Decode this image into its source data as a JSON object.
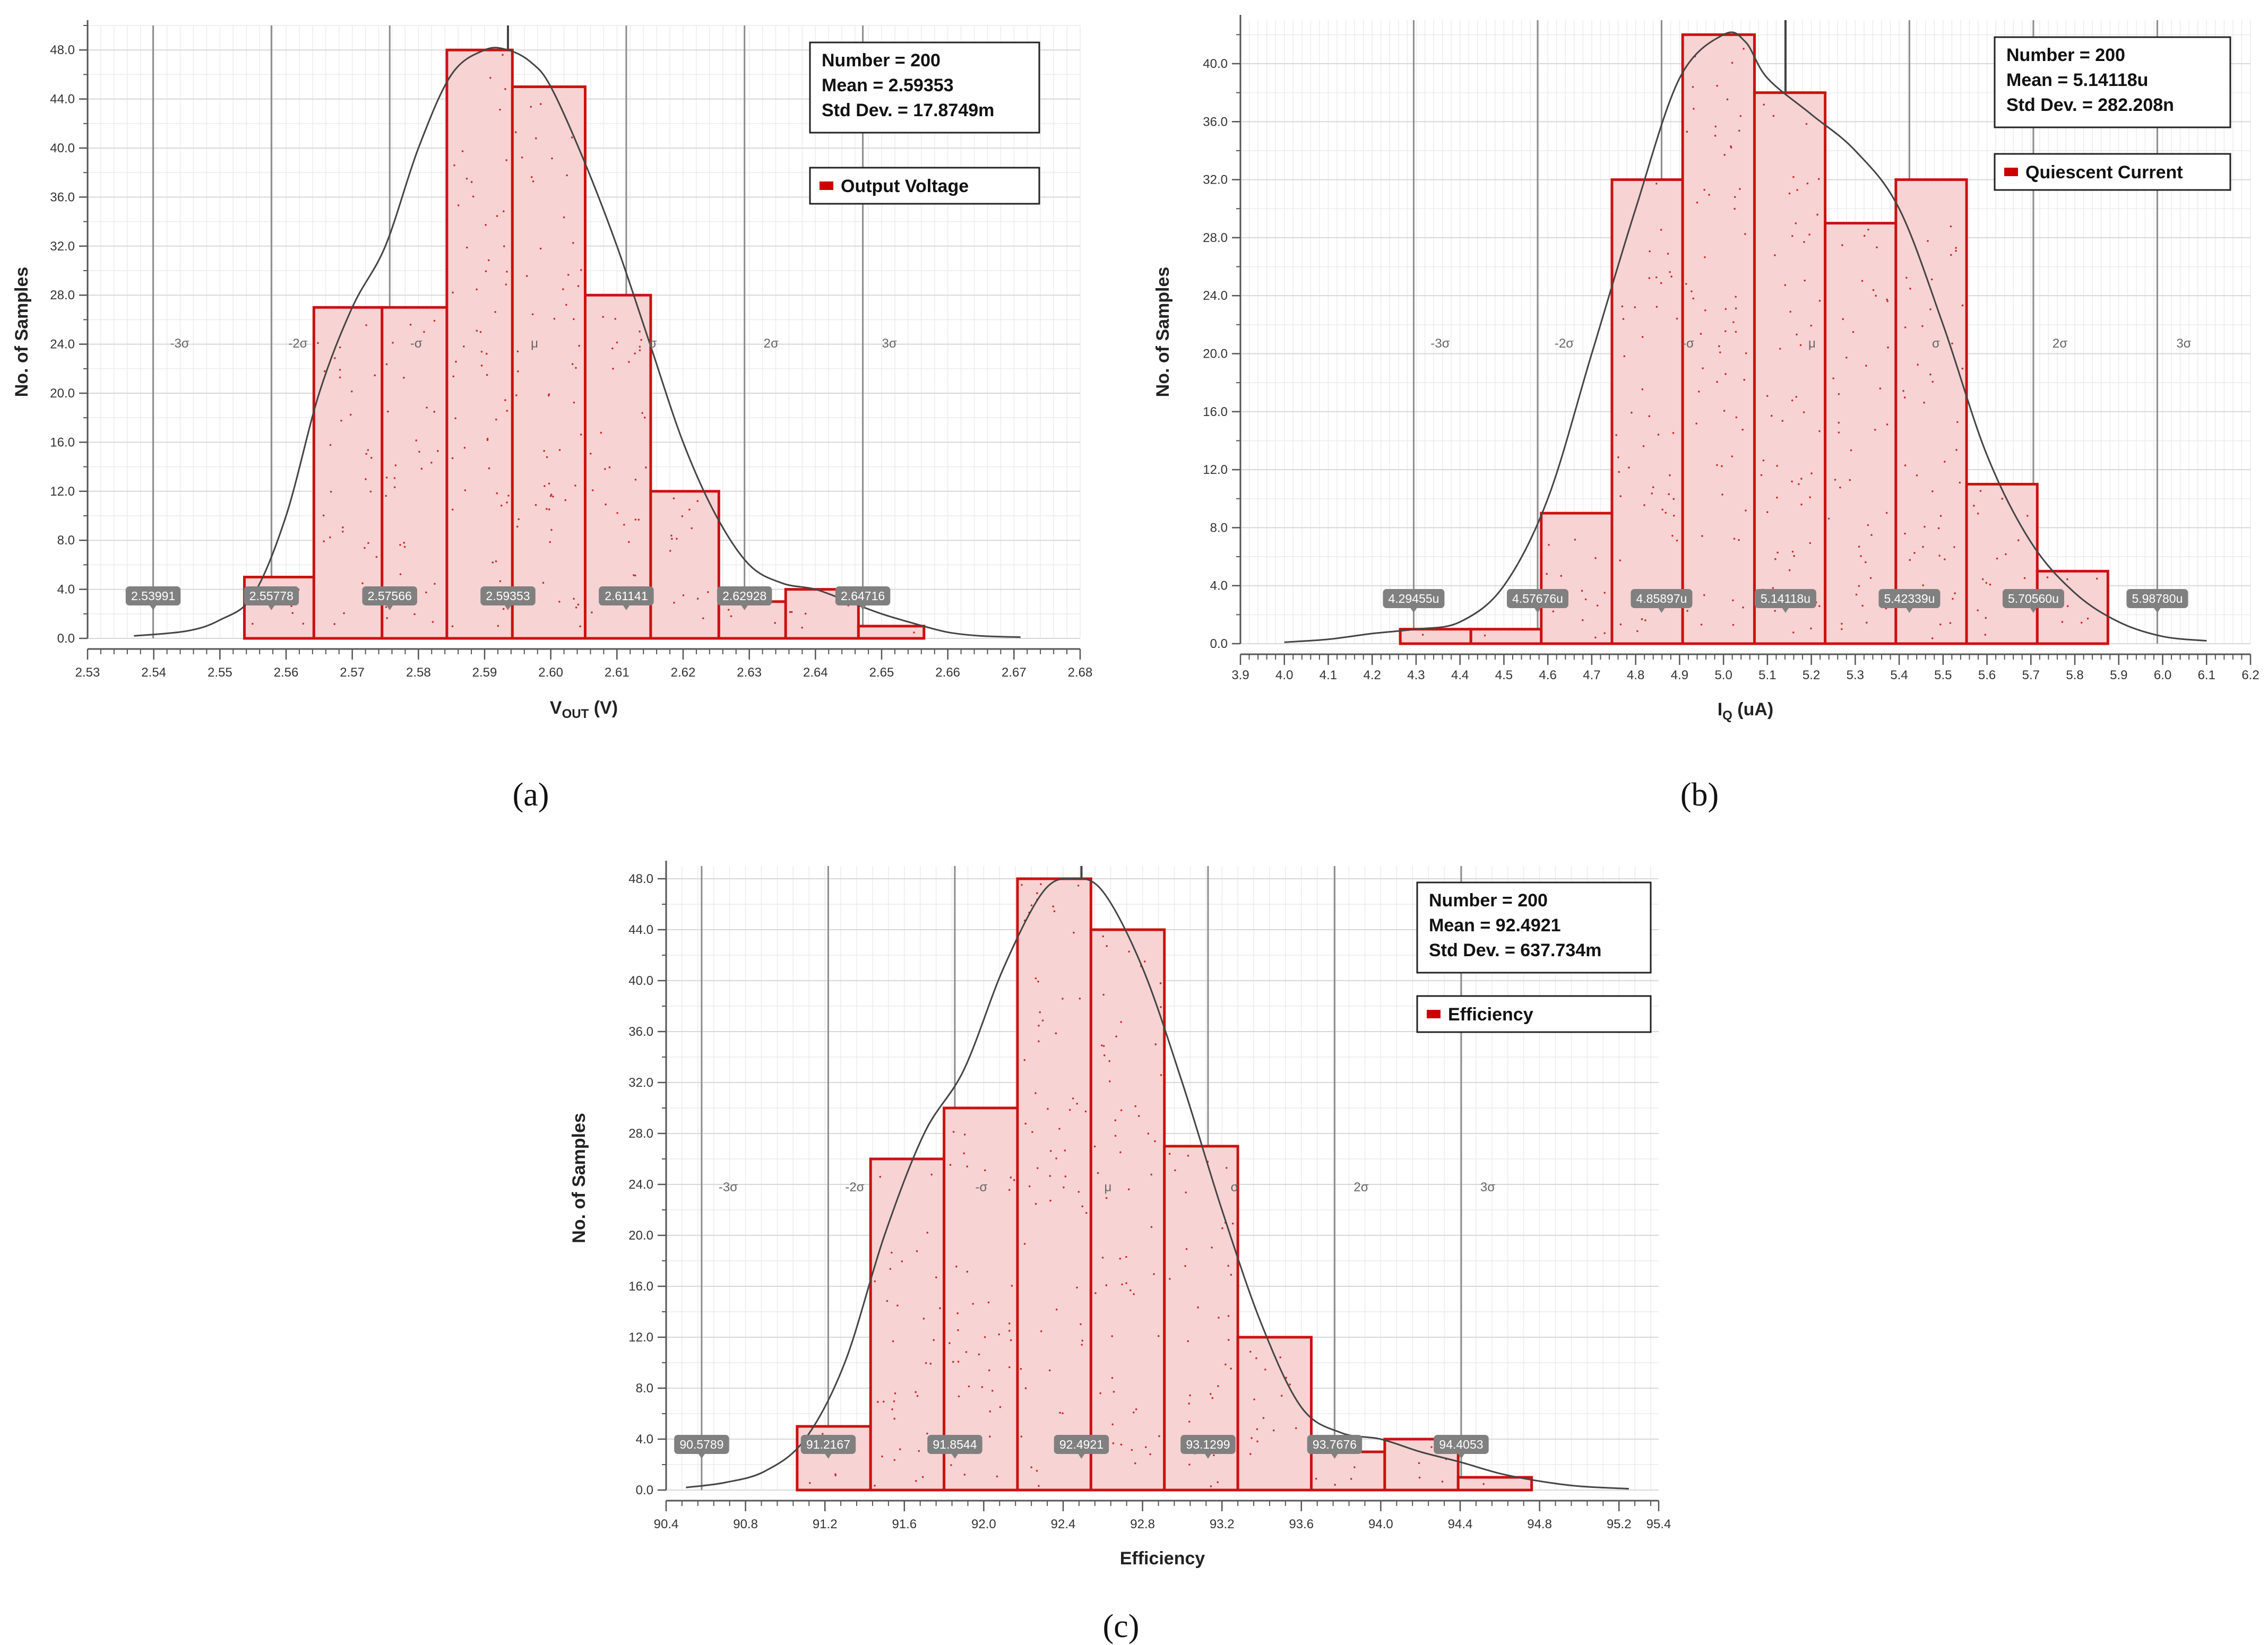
{
  "colors": {
    "bar_fill": "#f8d3d3",
    "bar_stroke": "#cc1111",
    "bar_dot": "#cc2a2a",
    "grid_minor": "#ececec",
    "grid_major": "#d8d8d8",
    "sigma_line": "#8c8c8c",
    "mean_line": "#444444",
    "curve": "#444444",
    "marker_bg": "#808080",
    "legend_swatch": "#cc0000"
  },
  "chart_data": [
    {
      "id": "a",
      "type": "bar",
      "panel_label": "(a)",
      "xlabel_main": "V",
      "xlabel_sub": "OUT",
      "xlabel_unit": " (V)",
      "ylabel": "No. of Samples",
      "xlim": [
        2.53,
        2.68
      ],
      "ylim": [
        0,
        50
      ],
      "xticks": [
        2.53,
        2.54,
        2.55,
        2.56,
        2.57,
        2.58,
        2.59,
        2.6,
        2.61,
        2.62,
        2.63,
        2.64,
        2.65,
        2.66,
        2.67,
        2.68
      ],
      "xtick_labels": [
        "2.53",
        "2.54",
        "2.55",
        "2.56",
        "2.57",
        "2.58",
        "2.59",
        "2.60",
        "2.61",
        "2.62",
        "2.63",
        "2.64",
        "2.65",
        "2.66",
        "2.67",
        "2.68"
      ],
      "yticks": [
        0,
        4,
        8,
        12,
        16,
        20,
        24,
        28,
        32,
        36,
        40,
        44,
        48
      ],
      "ytick_labels": [
        "0.0",
        "4.0",
        "8.0",
        "12.0",
        "16.0",
        "20.0",
        "24.0",
        "28.0",
        "32.0",
        "36.0",
        "40.0",
        "44.0",
        "48.0"
      ],
      "bins": [
        {
          "x0": 2.5537,
          "x1": 2.5642,
          "count": 5
        },
        {
          "x0": 2.5642,
          "x1": 2.5745,
          "count": 27
        },
        {
          "x0": 2.5745,
          "x1": 2.5843,
          "count": 27
        },
        {
          "x0": 2.5843,
          "x1": 2.5942,
          "count": 48
        },
        {
          "x0": 2.5942,
          "x1": 2.6052,
          "count": 45
        },
        {
          "x0": 2.6052,
          "x1": 2.6151,
          "count": 28
        },
        {
          "x0": 2.6151,
          "x1": 2.6254,
          "count": 12
        },
        {
          "x0": 2.6254,
          "x1": 2.6355,
          "count": 3
        },
        {
          "x0": 2.6355,
          "x1": 2.6465,
          "count": 4
        },
        {
          "x0": 2.6465,
          "x1": 2.6564,
          "count": 1
        }
      ],
      "curve": {
        "x": [
          2.537,
          2.545,
          2.55,
          2.555,
          2.56,
          2.565,
          2.57,
          2.575,
          2.58,
          2.585,
          2.59,
          2.5935,
          2.597,
          2.6,
          2.605,
          2.61,
          2.615,
          2.62,
          2.625,
          2.63,
          2.635,
          2.64,
          2.645,
          2.65,
          2.655,
          2.66,
          2.665,
          2.671
        ],
        "y": [
          0.2,
          0.6,
          1.5,
          3.5,
          10,
          20,
          27,
          32,
          40,
          46,
          48,
          48,
          47,
          45,
          39,
          32,
          24,
          16,
          10,
          6,
          4.5,
          4,
          3,
          2,
          1.2,
          0.5,
          0.2,
          0.1
        ]
      },
      "mean": 2.59353,
      "sigma_positions": [
        2.53991,
        2.55778,
        2.57566,
        2.59353,
        2.61141,
        2.62928,
        2.64716
      ],
      "sigma_labels": [
        "-3σ",
        "-2σ",
        "-σ",
        "μ",
        "σ",
        "2σ",
        "3σ"
      ],
      "marker_labels": [
        "2.53991",
        "2.55778",
        "2.57566",
        "2.59353",
        "2.61141",
        "2.62928",
        "2.64716"
      ],
      "stats": [
        "Number = 200",
        "Mean = 2.59353",
        "Std Dev. = 17.8749m"
      ],
      "legend": "Output Voltage"
    },
    {
      "id": "b",
      "type": "bar",
      "panel_label": "(b)",
      "xlabel_main": "I",
      "xlabel_sub": "Q",
      "xlabel_unit": " (uA)",
      "ylabel": "No. of Samples",
      "xlim": [
        3.9,
        6.2
      ],
      "ylim": [
        0,
        43
      ],
      "xticks": [
        3.9,
        4.0,
        4.1,
        4.2,
        4.3,
        4.4,
        4.5,
        4.6,
        4.7,
        4.8,
        4.9,
        5.0,
        5.1,
        5.2,
        5.3,
        5.4,
        5.5,
        5.6,
        5.7,
        5.8,
        5.9,
        6.0,
        6.1,
        6.2
      ],
      "xtick_labels": [
        "3.9",
        "4.0",
        "4.1",
        "4.2",
        "4.3",
        "4.4",
        "4.5",
        "4.6",
        "4.7",
        "4.8",
        "4.9",
        "5.0",
        "5.1",
        "5.2",
        "5.3",
        "5.4",
        "5.5",
        "5.6",
        "5.7",
        "5.8",
        "5.9",
        "6.0",
        "6.1",
        "6.2"
      ],
      "yticks": [
        0,
        4,
        8,
        12,
        16,
        20,
        24,
        28,
        32,
        36,
        40
      ],
      "ytick_labels": [
        "0.0",
        "4.0",
        "8.0",
        "12.0",
        "16.0",
        "20.0",
        "24.0",
        "28.0",
        "32.0",
        "36.0",
        "40.0"
      ],
      "bins": [
        {
          "x0": 4.264,
          "x1": 4.4248,
          "count": 1
        },
        {
          "x0": 4.4248,
          "x1": 4.585,
          "count": 1
        },
        {
          "x0": 4.585,
          "x1": 4.746,
          "count": 9
        },
        {
          "x0": 4.746,
          "x1": 4.907,
          "count": 32
        },
        {
          "x0": 4.907,
          "x1": 5.0705,
          "count": 42
        },
        {
          "x0": 5.0705,
          "x1": 5.2315,
          "count": 38
        },
        {
          "x0": 5.2315,
          "x1": 5.3925,
          "count": 29
        },
        {
          "x0": 5.3925,
          "x1": 5.5535,
          "count": 32
        },
        {
          "x0": 5.5535,
          "x1": 5.7145,
          "count": 11
        },
        {
          "x0": 5.7145,
          "x1": 5.8753,
          "count": 5
        }
      ],
      "curve": {
        "x": [
          4.0,
          4.1,
          4.2,
          4.3,
          4.4,
          4.5,
          4.6,
          4.7,
          4.8,
          4.9,
          5.0,
          5.05,
          5.1,
          5.2,
          5.3,
          5.4,
          5.5,
          5.6,
          5.7,
          5.8,
          5.9,
          6.0,
          6.1
        ],
        "y": [
          0.1,
          0.3,
          0.7,
          1.0,
          1.5,
          4,
          10,
          20,
          30,
          39,
          42,
          41.5,
          39,
          36.5,
          34,
          30,
          22,
          13,
          7,
          3.5,
          1.5,
          0.5,
          0.2
        ]
      },
      "mean": 5.14118,
      "sigma_positions": [
        4.29455,
        4.57676,
        4.85897,
        5.14118,
        5.42339,
        5.7056,
        5.9878
      ],
      "sigma_labels": [
        "-3σ",
        "-2σ",
        "-σ",
        "μ",
        "σ",
        "2σ",
        "3σ"
      ],
      "marker_labels": [
        "4.29455u",
        "4.57676u",
        "4.85897u",
        "5.14118u",
        "5.42339u",
        "5.70560u",
        "5.98780u"
      ],
      "stats": [
        "Number = 200",
        "Mean = 5.14118u",
        "Std Dev. = 282.208n"
      ],
      "legend": "Quiescent Current"
    },
    {
      "id": "c",
      "type": "bar",
      "panel_label": "(c)",
      "xlabel_main": "Efficiency",
      "xlabel_sub": "",
      "xlabel_unit": "",
      "ylabel": "No. of Samples",
      "xlim": [
        90.4,
        95.4
      ],
      "ylim": [
        0,
        49
      ],
      "xticks": [
        90.4,
        90.8,
        91.2,
        91.6,
        92.0,
        92.4,
        92.8,
        93.2,
        93.6,
        94.0,
        94.4,
        94.8,
        95.2,
        95.4
      ],
      "xtick_labels": [
        "90.4",
        "90.8",
        "91.2",
        "91.6",
        "92.0",
        "92.4",
        "92.8",
        "93.2",
        "93.6",
        "94.0",
        "94.4",
        "94.8",
        "95.2",
        "95.4"
      ],
      "yticks": [
        0,
        4,
        8,
        12,
        16,
        20,
        24,
        28,
        32,
        36,
        40,
        44,
        48
      ],
      "ytick_labels": [
        "0.0",
        "4.0",
        "8.0",
        "12.0",
        "16.0",
        "20.0",
        "24.0",
        "28.0",
        "32.0",
        "36.0",
        "40.0",
        "44.0",
        "48.0"
      ],
      "bins": [
        {
          "x0": 91.06,
          "x1": 91.43,
          "count": 5
        },
        {
          "x0": 91.43,
          "x1": 91.8,
          "count": 26
        },
        {
          "x0": 91.8,
          "x1": 92.17,
          "count": 30
        },
        {
          "x0": 92.17,
          "x1": 92.54,
          "count": 48
        },
        {
          "x0": 92.54,
          "x1": 92.91,
          "count": 44
        },
        {
          "x0": 92.91,
          "x1": 93.28,
          "count": 27
        },
        {
          "x0": 93.28,
          "x1": 93.65,
          "count": 12
        },
        {
          "x0": 93.65,
          "x1": 94.02,
          "count": 3
        },
        {
          "x0": 94.02,
          "x1": 94.39,
          "count": 4
        },
        {
          "x0": 94.39,
          "x1": 94.76,
          "count": 1
        }
      ],
      "curve": {
        "x": [
          90.5,
          90.7,
          90.9,
          91.1,
          91.3,
          91.5,
          91.7,
          91.9,
          92.1,
          92.3,
          92.45,
          92.6,
          92.8,
          93.0,
          93.2,
          93.4,
          93.6,
          93.8,
          94.0,
          94.2,
          94.4,
          94.6,
          94.8,
          95.0,
          95.25
        ],
        "y": [
          0.2,
          0.6,
          1.5,
          4,
          10,
          20,
          28,
          33,
          41,
          47,
          48,
          47,
          41,
          32,
          22,
          13,
          6.5,
          4.5,
          4,
          3,
          2.2,
          1.3,
          0.7,
          0.3,
          0.1
        ]
      },
      "mean": 92.4921,
      "sigma_positions": [
        90.5789,
        91.2167,
        91.8544,
        92.4921,
        93.1299,
        93.7676,
        94.4053
      ],
      "sigma_labels": [
        "-3σ",
        "-2σ",
        "-σ",
        "μ",
        "σ",
        "2σ",
        "3σ"
      ],
      "marker_labels": [
        "90.5789",
        "91.2167",
        "91.8544",
        "92.4921",
        "93.1299",
        "93.7676",
        "94.4053"
      ],
      "stats": [
        "Number = 200",
        "Mean = 92.4921",
        "Std Dev. =  637.734m"
      ],
      "legend": "Efficiency"
    }
  ]
}
